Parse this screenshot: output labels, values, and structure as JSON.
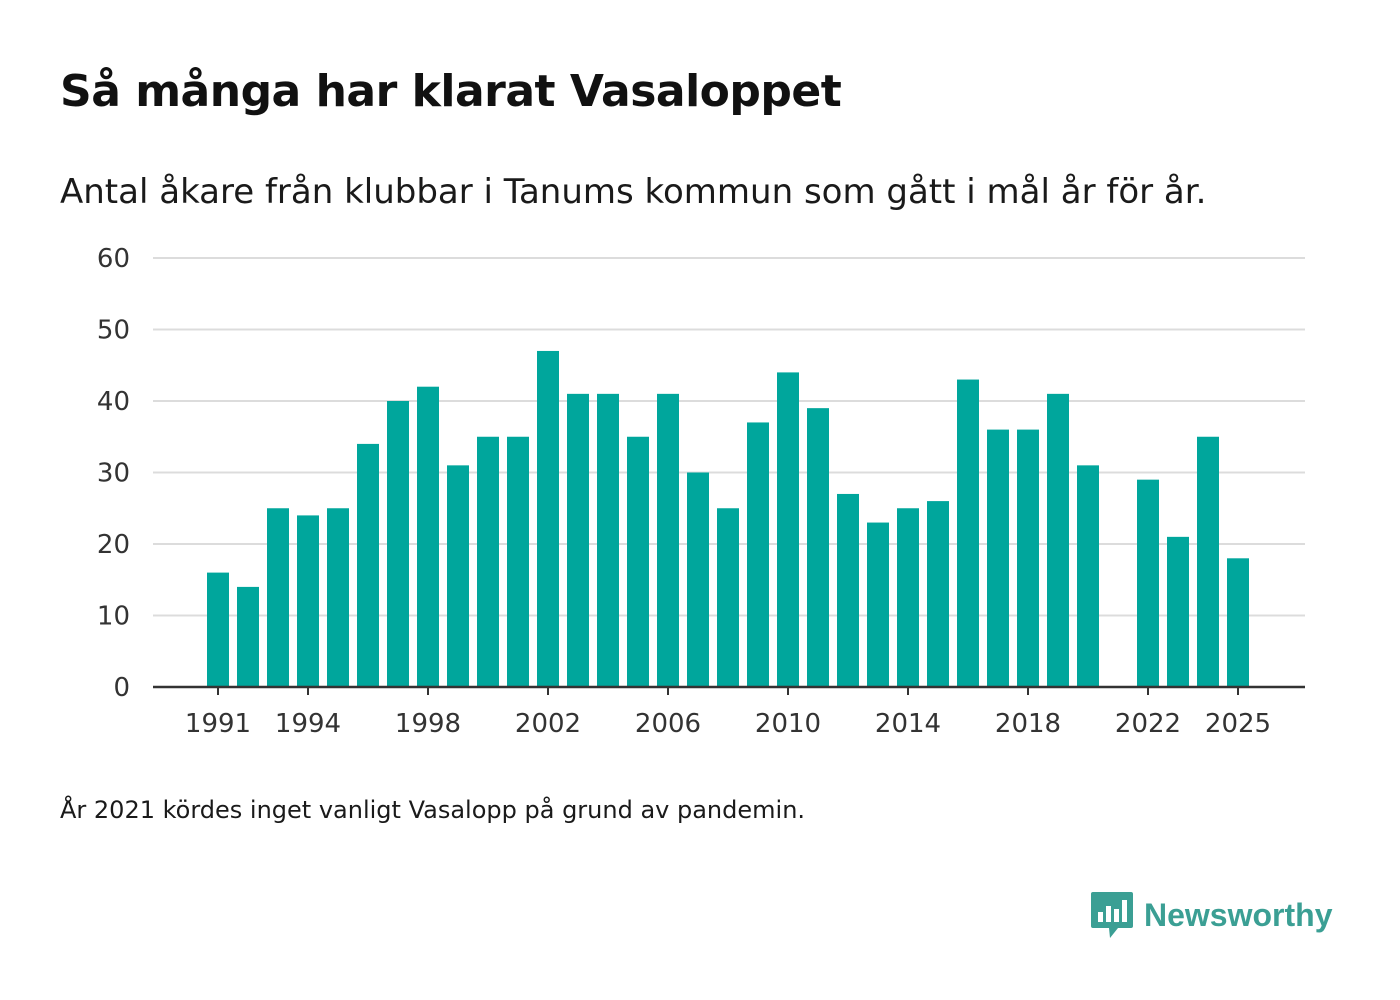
{
  "header": {
    "title": "Så många har klarat Vasaloppet",
    "subtitle": "Antal åkare från klubbar i Tanums kommun som gått i mål år för år."
  },
  "footer": {
    "note": "År 2021 kördes inget vanligt Vasalopp på grund av pandemin.",
    "brand_name": "Newsworthy",
    "brand_icon": "newsworthy-logo-icon"
  },
  "colors": {
    "bar": "#00a69c",
    "grid": "#dcdcdc",
    "axis": "#333333",
    "brand": "#3b9f94"
  },
  "chart_data": {
    "type": "bar",
    "title": "Så många har klarat Vasaloppet",
    "xlabel": "",
    "ylabel": "",
    "ylim": [
      0,
      60
    ],
    "yticks": [
      0,
      10,
      20,
      30,
      40,
      50,
      60
    ],
    "grid": true,
    "xtick_labels": [
      "1991",
      "1994",
      "1998",
      "2002",
      "2006",
      "2010",
      "2014",
      "2018",
      "2022",
      "2025"
    ],
    "categories": [
      1991,
      1992,
      1993,
      1994,
      1995,
      1996,
      1997,
      1998,
      1999,
      2000,
      2001,
      2002,
      2003,
      2004,
      2005,
      2006,
      2007,
      2008,
      2009,
      2010,
      2011,
      2012,
      2013,
      2014,
      2015,
      2016,
      2017,
      2018,
      2019,
      2020,
      2021,
      2022,
      2023,
      2024,
      2025
    ],
    "values": [
      16,
      14,
      25,
      24,
      25,
      34,
      40,
      42,
      31,
      35,
      35,
      47,
      41,
      41,
      35,
      41,
      30,
      25,
      37,
      44,
      39,
      27,
      23,
      25,
      26,
      43,
      36,
      36,
      41,
      31,
      null,
      29,
      21,
      35,
      18
    ]
  }
}
